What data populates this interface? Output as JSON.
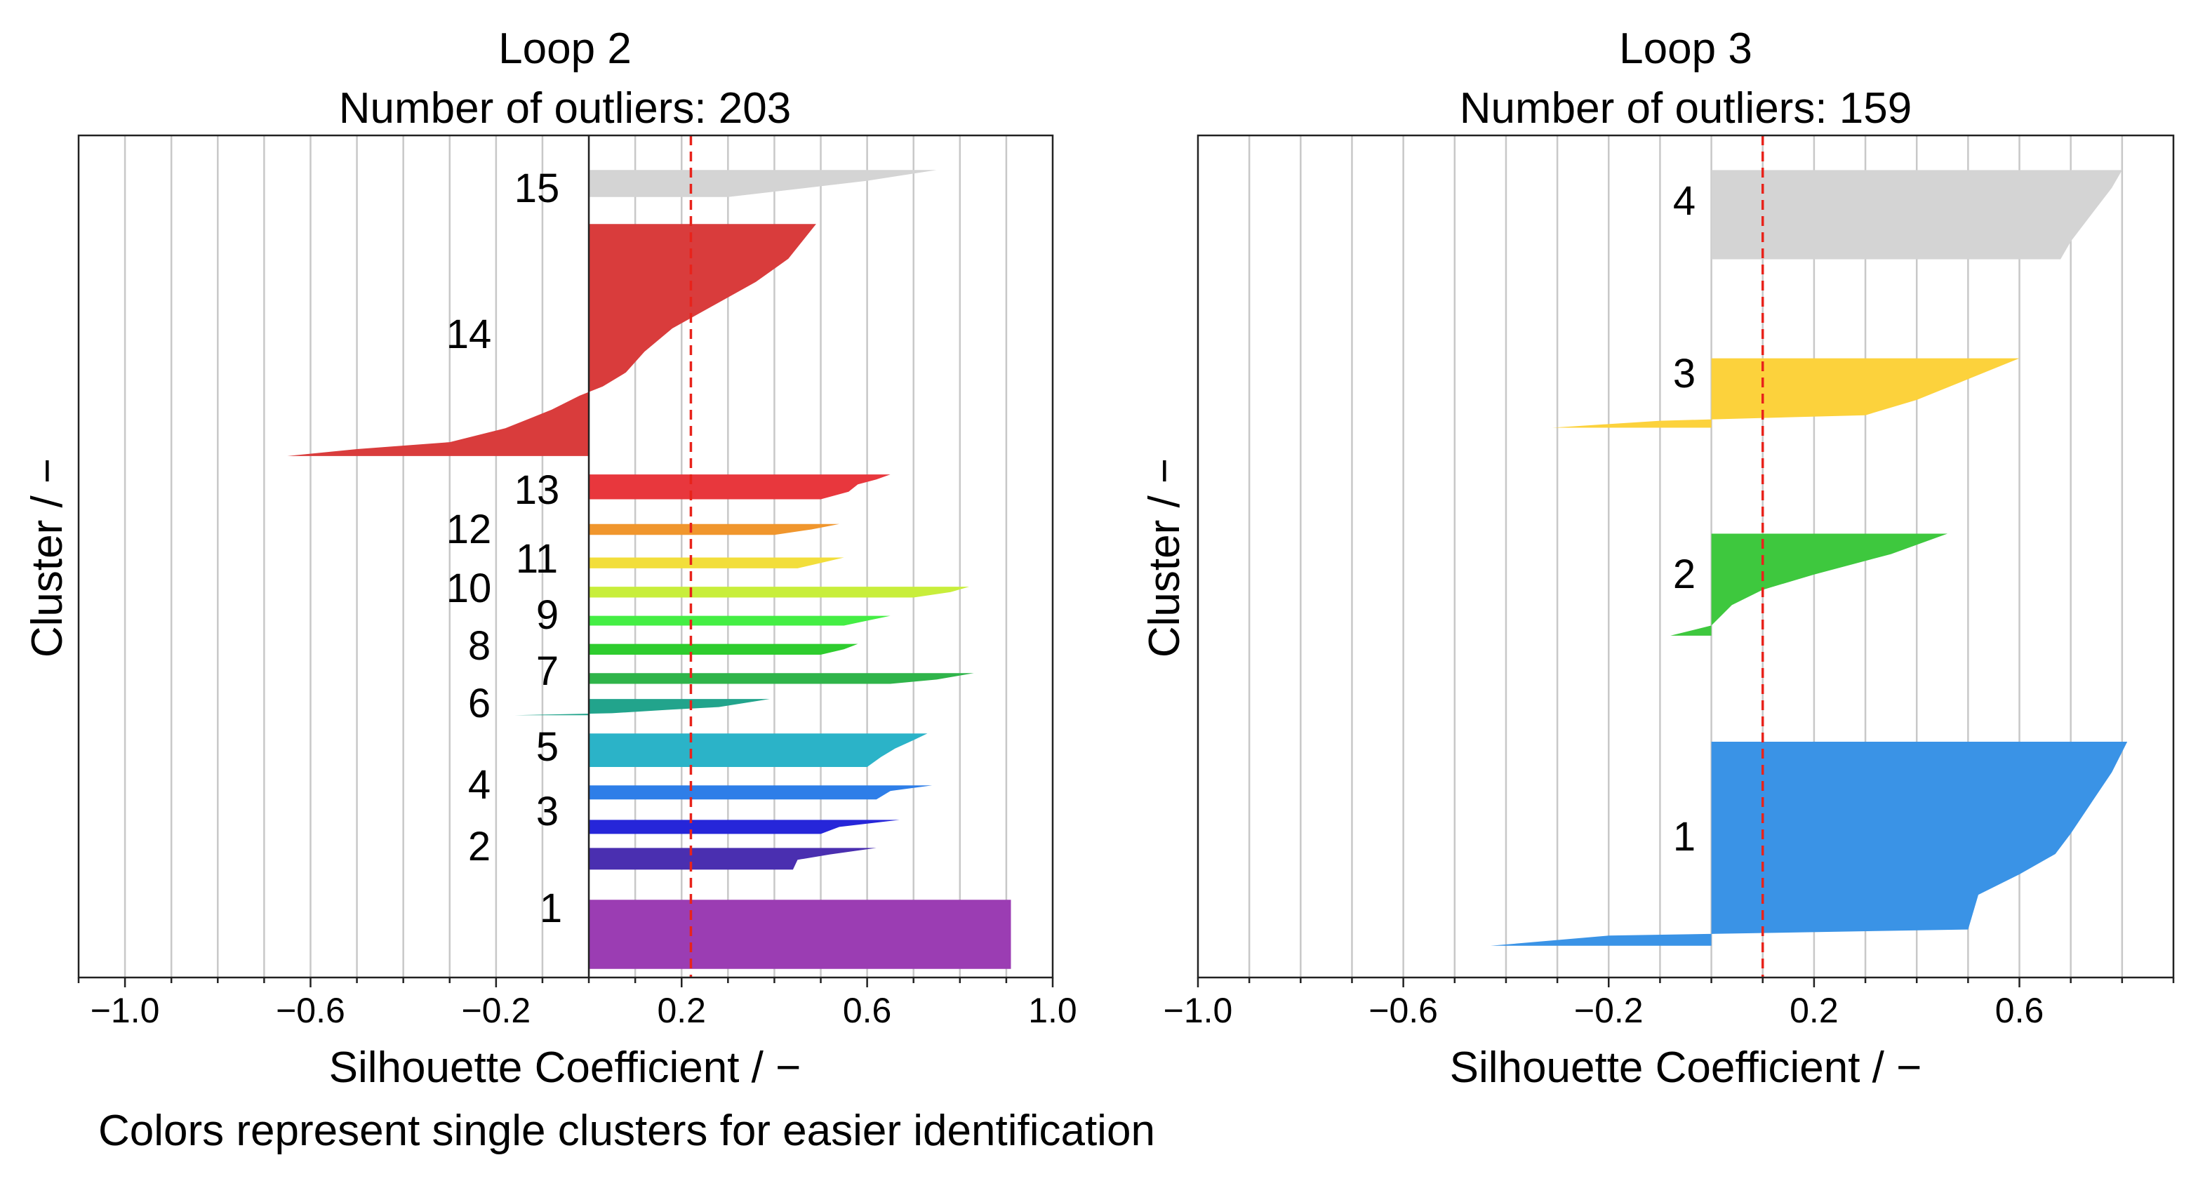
{
  "caption": "Colors represent single clusters for easier identification",
  "chart_data": [
    {
      "type": "silhouette",
      "title": "Loop 2",
      "subtitle": "Number of outliers: 203",
      "xlabel": "Silhouette Coefficient / −",
      "ylabel": "Cluster / −",
      "xlim": [
        -1.1,
        1.0
      ],
      "major_ticks": [
        -1.0,
        -0.6,
        -0.2,
        0.2,
        0.6,
        1.0
      ],
      "tick_labels": [
        "−1.0",
        "−0.6",
        "−0.2",
        "0.2",
        "0.6",
        "1.0"
      ],
      "grid_step": 0.1,
      "average_silhouette": 0.22,
      "show_zero_line": true,
      "clusters": [
        {
          "label": "1",
          "color": "#9b3db3",
          "y_range": [
            0.8,
            7.2
          ],
          "profile": [
            [
              0,
              0.91
            ],
            [
              1,
              0.91
            ]
          ]
        },
        {
          "label": "2",
          "color": "#4a2fb0",
          "y_range": [
            10,
            12
          ],
          "profile": [
            [
              0,
              0.44
            ],
            [
              0.45,
              0.45
            ],
            [
              0.7,
              0.52
            ],
            [
              1,
              0.62
            ]
          ]
        },
        {
          "label": "3",
          "color": "#2626d9",
          "y_range": [
            13.3,
            14.6
          ],
          "profile": [
            [
              0,
              0.5
            ],
            [
              0.5,
              0.54
            ],
            [
              1,
              0.67
            ]
          ]
        },
        {
          "label": "4",
          "color": "#2e7ee8",
          "y_range": [
            16.5,
            17.8
          ],
          "profile": [
            [
              0,
              0.62
            ],
            [
              0.6,
              0.65
            ],
            [
              1,
              0.74
            ]
          ]
        },
        {
          "label": "5",
          "color": "#2bb3c8",
          "y_range": [
            19.5,
            22.6
          ],
          "profile": [
            [
              0,
              0.6
            ],
            [
              0.3,
              0.63
            ],
            [
              0.55,
              0.66
            ],
            [
              0.8,
              0.7
            ],
            [
              1,
              0.73
            ]
          ]
        },
        {
          "label": "6",
          "color": "#22a48c",
          "y_range": [
            24.3,
            25.8
          ],
          "profile": [
            [
              0,
              -0.16
            ],
            [
              0.12,
              0.05
            ],
            [
              0.35,
              0.18
            ],
            [
              0.5,
              0.28
            ],
            [
              1,
              0.39
            ]
          ]
        },
        {
          "label": "7",
          "color": "#2fb44a",
          "y_range": [
            27.2,
            28.2
          ],
          "profile": [
            [
              0,
              0.65
            ],
            [
              0.4,
              0.75
            ],
            [
              1,
              0.83
            ]
          ]
        },
        {
          "label": "8",
          "color": "#2ecc2e",
          "y_range": [
            29.9,
            30.9
          ],
          "profile": [
            [
              0,
              0.5
            ],
            [
              0.5,
              0.55
            ],
            [
              1,
              0.58
            ]
          ]
        },
        {
          "label": "9",
          "color": "#44ee44",
          "y_range": [
            32.6,
            33.5
          ],
          "profile": [
            [
              0,
              0.55
            ],
            [
              0.5,
              0.6
            ],
            [
              1,
              0.65
            ]
          ]
        },
        {
          "label": "10",
          "color": "#c8ee3b",
          "y_range": [
            35.2,
            36.2
          ],
          "profile": [
            [
              0,
              0.7
            ],
            [
              0.5,
              0.78
            ],
            [
              1,
              0.82
            ]
          ]
        },
        {
          "label": "11",
          "color": "#f2de3b",
          "y_range": [
            37.9,
            38.9
          ],
          "profile": [
            [
              0,
              0.45
            ],
            [
              0.5,
              0.5
            ],
            [
              1,
              0.55
            ]
          ]
        },
        {
          "label": "12",
          "color": "#f0962d",
          "y_range": [
            41.0,
            42.0
          ],
          "profile": [
            [
              0,
              0.4
            ],
            [
              0.5,
              0.48
            ],
            [
              1,
              0.54
            ]
          ]
        },
        {
          "label": "13",
          "color": "#e8373d",
          "y_range": [
            44.3,
            46.6
          ],
          "profile": [
            [
              0,
              0.5
            ],
            [
              0.3,
              0.56
            ],
            [
              0.6,
              0.58
            ],
            [
              0.8,
              0.62
            ],
            [
              1,
              0.65
            ]
          ]
        },
        {
          "label": "14",
          "color": "#d93c3c",
          "y_range": [
            48.3,
            69.8
          ],
          "profile": [
            [
              0,
              -0.65
            ],
            [
              0.03,
              -0.5
            ],
            [
              0.06,
              -0.3
            ],
            [
              0.12,
              -0.18
            ],
            [
              0.2,
              -0.08
            ],
            [
              0.26,
              -0.02
            ],
            [
              0.3,
              0.03
            ],
            [
              0.36,
              0.08
            ],
            [
              0.45,
              0.12
            ],
            [
              0.55,
              0.18
            ],
            [
              0.65,
              0.27
            ],
            [
              0.75,
              0.36
            ],
            [
              0.85,
              0.43
            ],
            [
              0.95,
              0.47
            ],
            [
              1,
              0.49
            ]
          ]
        },
        {
          "label": "15",
          "color": "#d4d4d4",
          "y_range": [
            72.3,
            74.8
          ],
          "profile": [
            [
              0,
              0.3
            ],
            [
              0.3,
              0.45
            ],
            [
              0.6,
              0.6
            ],
            [
              1,
              0.75
            ]
          ]
        }
      ]
    },
    {
      "type": "silhouette",
      "title": "Loop 3",
      "subtitle": "Number of outliers: 159",
      "xlabel": "Silhouette Coefficient / −",
      "ylabel": "Cluster / −",
      "xlim": [
        -1.0,
        0.9
      ],
      "major_ticks": [
        -1.0,
        -0.6,
        -0.2,
        0.2,
        0.6
      ],
      "tick_labels": [
        "−1.0",
        "−0.6",
        "−0.2",
        "0.2",
        "0.6"
      ],
      "grid_step": 0.1,
      "average_silhouette": 0.1,
      "show_zero_line": false,
      "clusters": [
        {
          "label": "1",
          "color": "#3a93e6",
          "y_range": [
            3.2,
            23.8
          ],
          "profile": [
            [
              0,
              -0.43
            ],
            [
              0.05,
              -0.2
            ],
            [
              0.08,
              0.5
            ],
            [
              0.25,
              0.52
            ],
            [
              0.35,
              0.6
            ],
            [
              0.45,
              0.67
            ],
            [
              0.55,
              0.7
            ],
            [
              0.7,
              0.74
            ],
            [
              0.85,
              0.78
            ],
            [
              1,
              0.81
            ]
          ]
        },
        {
          "label": "2",
          "color": "#3ec83e",
          "y_range": [
            34.5,
            44.8
          ],
          "profile": [
            [
              0,
              -0.08
            ],
            [
              0.1,
              0.0
            ],
            [
              0.3,
              0.04
            ],
            [
              0.45,
              0.1
            ],
            [
              0.6,
              0.2
            ],
            [
              0.8,
              0.35
            ],
            [
              1,
              0.46
            ]
          ]
        },
        {
          "label": "3",
          "color": "#fcd23c",
          "y_range": [
            55.5,
            62.5
          ],
          "profile": [
            [
              0,
              -0.31
            ],
            [
              0.1,
              -0.1
            ],
            [
              0.18,
              0.3
            ],
            [
              0.4,
              0.4
            ],
            [
              0.7,
              0.5
            ],
            [
              1,
              0.6
            ]
          ]
        },
        {
          "label": "4",
          "color": "#d4d4d4",
          "y_range": [
            72.5,
            81.5
          ],
          "profile": [
            [
              0,
              0.68
            ],
            [
              0.2,
              0.7
            ],
            [
              0.5,
              0.74
            ],
            [
              0.8,
              0.78
            ],
            [
              1,
              0.8
            ]
          ]
        }
      ]
    }
  ]
}
